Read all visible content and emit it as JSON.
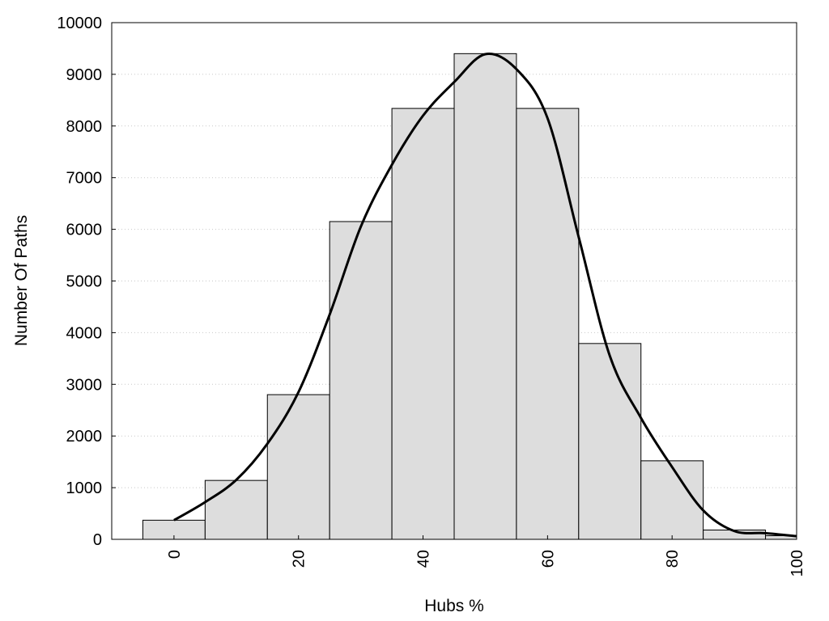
{
  "chart_data": {
    "type": "bar",
    "xlabel": "Hubs %",
    "ylabel": "Number Of Paths",
    "xlim": [
      -10,
      100
    ],
    "ylim": [
      0,
      10000
    ],
    "x_ticks": [
      0,
      20,
      40,
      60,
      80,
      100
    ],
    "y_ticks": [
      0,
      1000,
      2000,
      3000,
      4000,
      5000,
      6000,
      7000,
      8000,
      9000,
      10000
    ],
    "grid": "horizontal-dotted",
    "bar_color": "#dddddd",
    "bins": [
      {
        "x0": -5,
        "x1": 5,
        "value": 370
      },
      {
        "x0": 5,
        "x1": 15,
        "value": 1140
      },
      {
        "x0": 15,
        "x1": 25,
        "value": 2800
      },
      {
        "x0": 25,
        "x1": 35,
        "value": 6150
      },
      {
        "x0": 35,
        "x1": 45,
        "value": 8340
      },
      {
        "x0": 45,
        "x1": 55,
        "value": 9400
      },
      {
        "x0": 55,
        "x1": 65,
        "value": 8340
      },
      {
        "x0": 65,
        "x1": 75,
        "value": 3790
      },
      {
        "x0": 75,
        "x1": 85,
        "value": 1520
      },
      {
        "x0": 85,
        "x1": 95,
        "value": 180
      },
      {
        "x0": 95,
        "x1": 100,
        "value": 70
      }
    ],
    "curve": {
      "x": [
        0,
        5,
        10,
        15,
        20,
        25,
        30,
        35,
        40,
        45,
        50,
        55,
        60,
        65,
        70,
        75,
        80,
        85,
        90,
        95,
        100
      ],
      "y": [
        370,
        720,
        1150,
        1850,
        2850,
        4350,
        6050,
        7250,
        8200,
        8850,
        9390,
        9100,
        8150,
        5850,
        3550,
        2350,
        1400,
        560,
        160,
        120,
        60
      ]
    }
  }
}
